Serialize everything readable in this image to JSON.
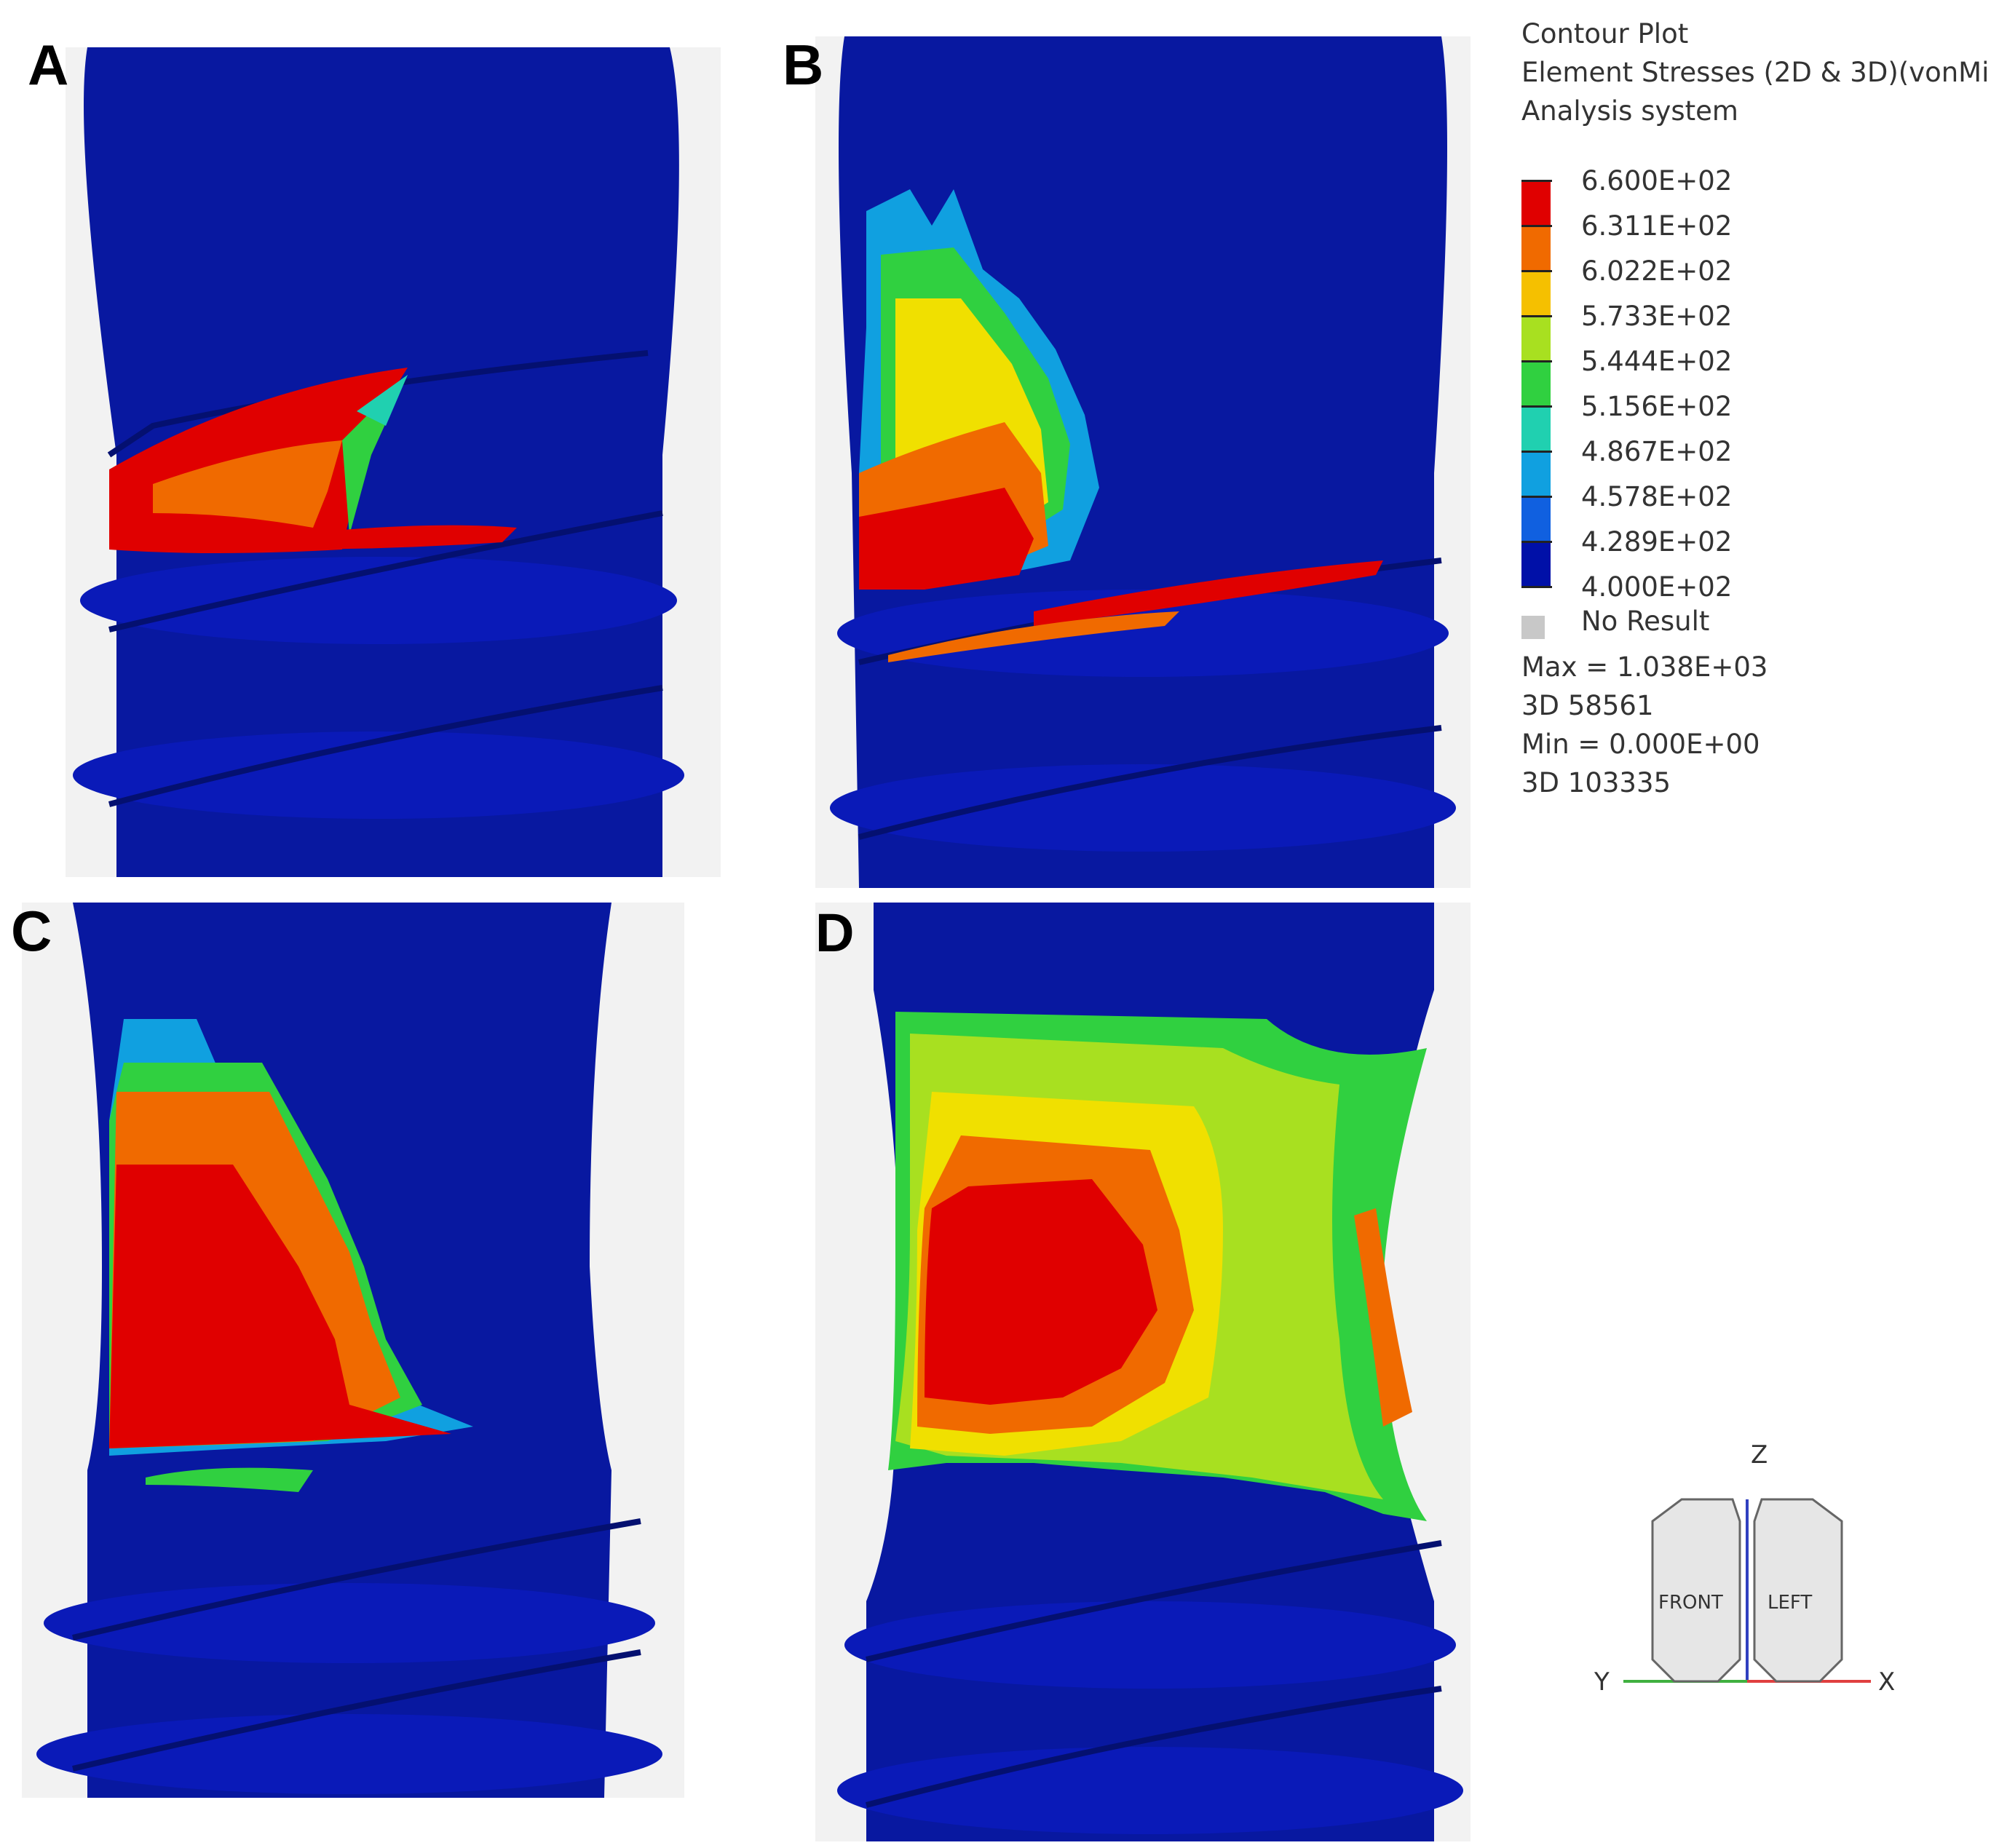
{
  "panels": [
    {
      "label": "A"
    },
    {
      "label": "B"
    },
    {
      "label": "C"
    },
    {
      "label": "D"
    }
  ],
  "legend": {
    "title": "Contour Plot",
    "subtitle": "Element Stresses (2D & 3D)(vonMi",
    "system": "Analysis system",
    "levels": [
      "6.600E+02",
      "6.311E+02",
      "6.022E+02",
      "5.733E+02",
      "5.444E+02",
      "5.156E+02",
      "4.867E+02",
      "4.578E+02",
      "4.289E+02",
      "4.000E+02"
    ],
    "level_colors": [
      "#e00000",
      "#f06a00",
      "#f5a800",
      "#f0e000",
      "#a8e020",
      "#30d040",
      "#20d0b0",
      "#10a0e0",
      "#1060e0",
      "#0010a8"
    ],
    "no_result_label": "No Result",
    "max_line": "Max =  1.038E+03",
    "max_element": "3D 58561",
    "min_line": "Min =  0.000E+00",
    "min_element": "3D 103335"
  },
  "triad": {
    "z": "Z",
    "y": "Y",
    "x": "X",
    "front": "FRONT",
    "left": "LEFT"
  }
}
